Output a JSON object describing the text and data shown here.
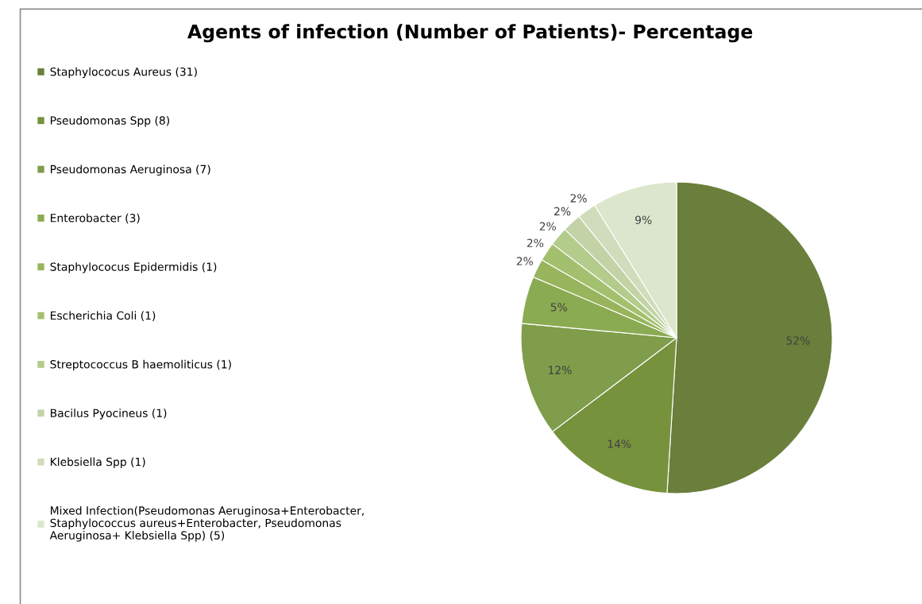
{
  "chart_data": {
    "type": "pie",
    "title": "Agents of infection (Number of Patients)- Percentage",
    "categories": [
      "Staphylococus Aureus (31)",
      "Pseudomonas Spp (8)",
      "Pseudomonas Aeruginosa (7)",
      "Enterobacter (3)",
      "Staphylococus Epidermidis (1)",
      "Escherichia Coli (1)",
      "Streptococcus B haemoliticus (1)",
      "Bacilus Pyocineus (1)",
      "Klebsiella Spp (1)",
      "Mixed Infection(Pseudomonas Aeruginosa+Enterobacter,\nStaphylococcus aureus+Enterobacter, Pseudomonas\nAeruginosa+ Klebsiella Spp) (5)"
    ],
    "values": [
      52,
      14,
      12,
      5,
      2,
      2,
      2,
      2,
      2,
      9
    ],
    "value_labels": [
      "52%",
      "14%",
      "12%",
      "5%",
      "2%",
      "2%",
      "2%",
      "2%",
      "2%",
      "9%"
    ],
    "colors": [
      "#6a7f3b",
      "#76923c",
      "#7f9d4a",
      "#8bab52",
      "#98b45c",
      "#a3c06e",
      "#b3cb8b",
      "#c3d3a6",
      "#d0dcbb",
      "#dce6cc"
    ],
    "legend": "left"
  }
}
